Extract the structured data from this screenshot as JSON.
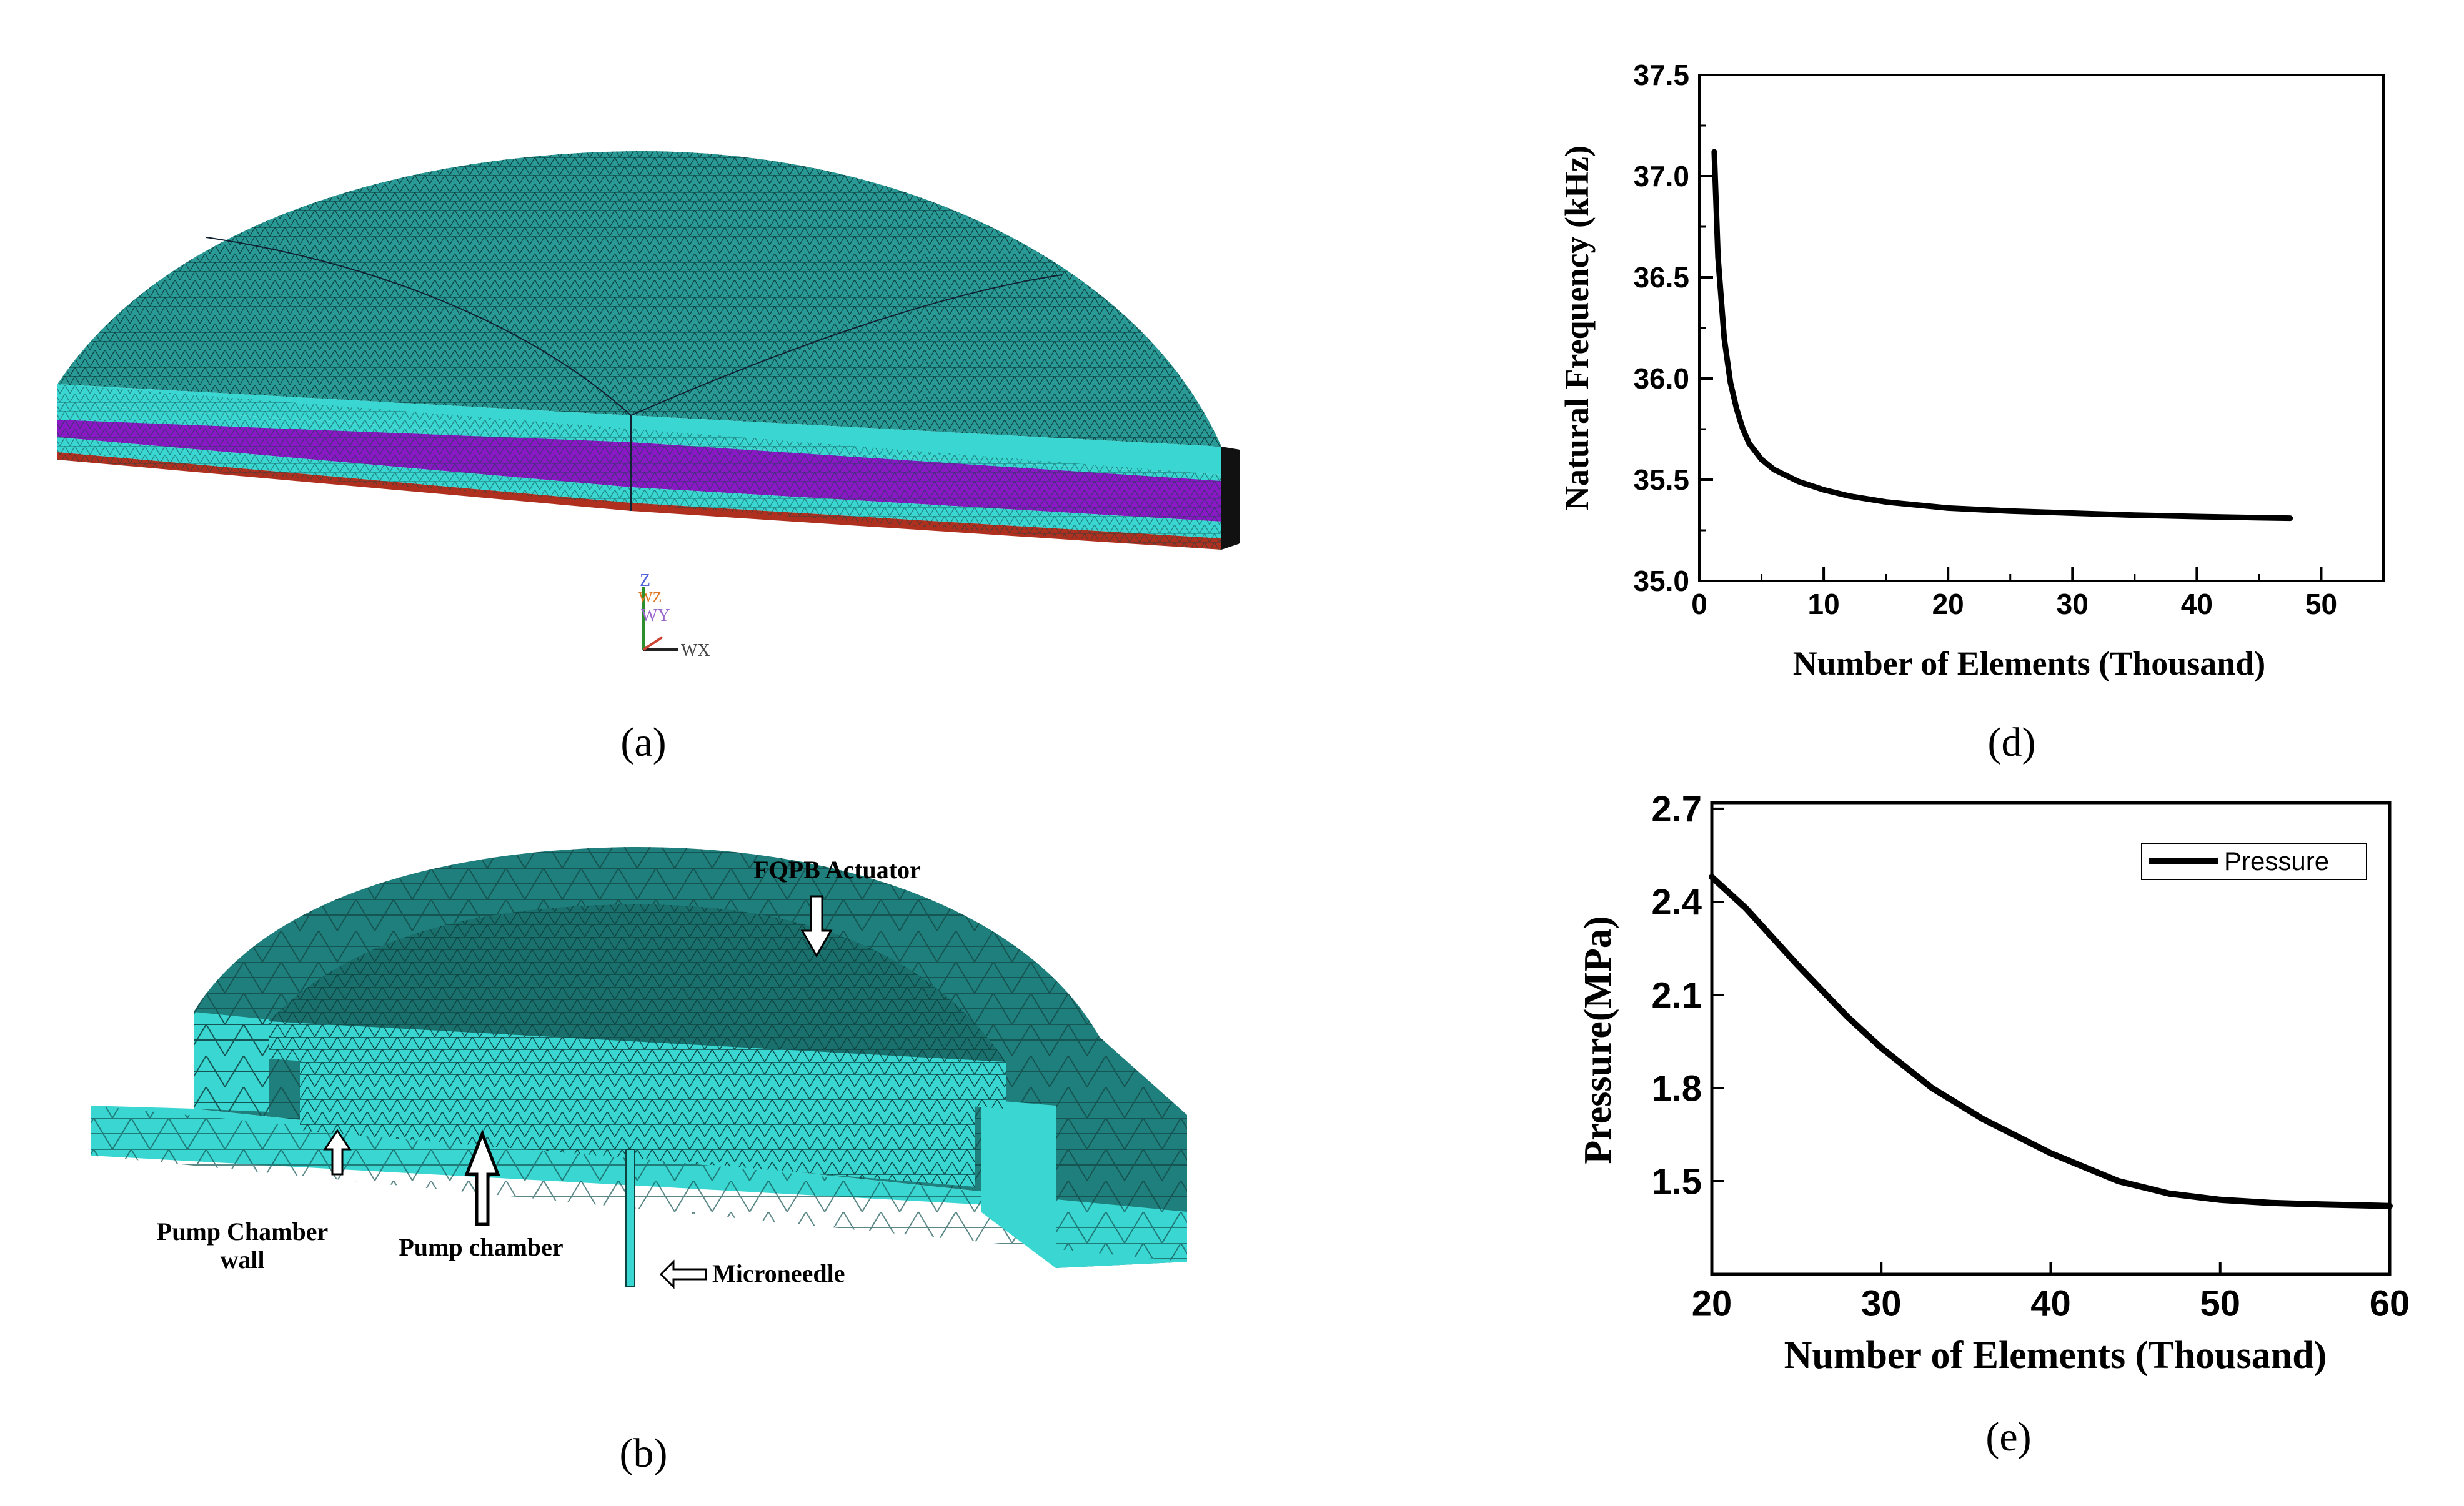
{
  "panels": {
    "a": {
      "caption": "(a)",
      "axis_triad": [
        "Z",
        "WZ",
        "WY",
        "WX"
      ]
    },
    "b": {
      "caption": "(b)",
      "annotations": {
        "actuator": "FQPB Actuator",
        "chamber_wall_line1": "Pump Chamber",
        "chamber_wall_line2": "wall",
        "chamber": "Pump chamber",
        "needle": "Microneedle"
      }
    },
    "d": {
      "caption": "(d)"
    },
    "e": {
      "caption": "(e)"
    }
  },
  "colors": {
    "mesh_teal": "#2a9a96",
    "mesh_cyan": "#3ad6d2",
    "mesh_purple": "#8a18c4",
    "mesh_red": "#b03020",
    "mesh_dark_teal": "#1f7f7c",
    "curve": "#000000"
  },
  "chart_data": [
    {
      "id": "d",
      "type": "line",
      "xlabel": "Number of Elements (Thousand)",
      "ylabel": "Natural Frequency (kHz)",
      "xlim": [
        0,
        55
      ],
      "ylim": [
        35.0,
        37.5
      ],
      "xticks": [
        0,
        10,
        20,
        30,
        40,
        50
      ],
      "yticks": [
        35.0,
        35.5,
        36.0,
        36.5,
        37.0,
        37.5
      ],
      "ytick_labels": [
        "35.0",
        "35.5",
        "36.0",
        "36.5",
        "37.0",
        "37.5"
      ],
      "grid": false,
      "series": [
        {
          "x": [
            1.2,
            1.5,
            2.0,
            2.5,
            3.0,
            3.5,
            4.0,
            5.0,
            6.0,
            8.0,
            10.0,
            12.0,
            15.0,
            20.0,
            25.0,
            30.0,
            35.0,
            40.0,
            45.0,
            47.5
          ],
          "y": [
            37.12,
            36.6,
            36.2,
            35.98,
            35.85,
            35.75,
            35.68,
            35.6,
            35.55,
            35.49,
            35.45,
            35.42,
            35.39,
            35.36,
            35.345,
            35.335,
            35.325,
            35.318,
            35.312,
            35.31
          ]
        }
      ]
    },
    {
      "id": "e",
      "type": "line",
      "xlabel": "Number of Elements (Thousand)",
      "ylabel": "Pressure(MPa)",
      "xlim": [
        20,
        60
      ],
      "ylim": [
        1.2,
        2.72
      ],
      "xticks": [
        20,
        30,
        40,
        50,
        60
      ],
      "yticks": [
        1.5,
        1.8,
        2.1,
        2.4,
        2.7
      ],
      "ytick_labels": [
        "1.5",
        "1.8",
        "2.1",
        "2.4",
        "2.7"
      ],
      "grid": false,
      "legend_position": "top-right",
      "series": [
        {
          "name": "Pressure",
          "x": [
            20,
            22,
            25,
            28,
            30,
            33,
            36,
            40,
            44,
            47,
            50,
            53,
            56,
            60
          ],
          "y": [
            2.48,
            2.38,
            2.2,
            2.03,
            1.93,
            1.8,
            1.7,
            1.59,
            1.5,
            1.46,
            1.44,
            1.43,
            1.425,
            1.42
          ]
        }
      ]
    }
  ]
}
